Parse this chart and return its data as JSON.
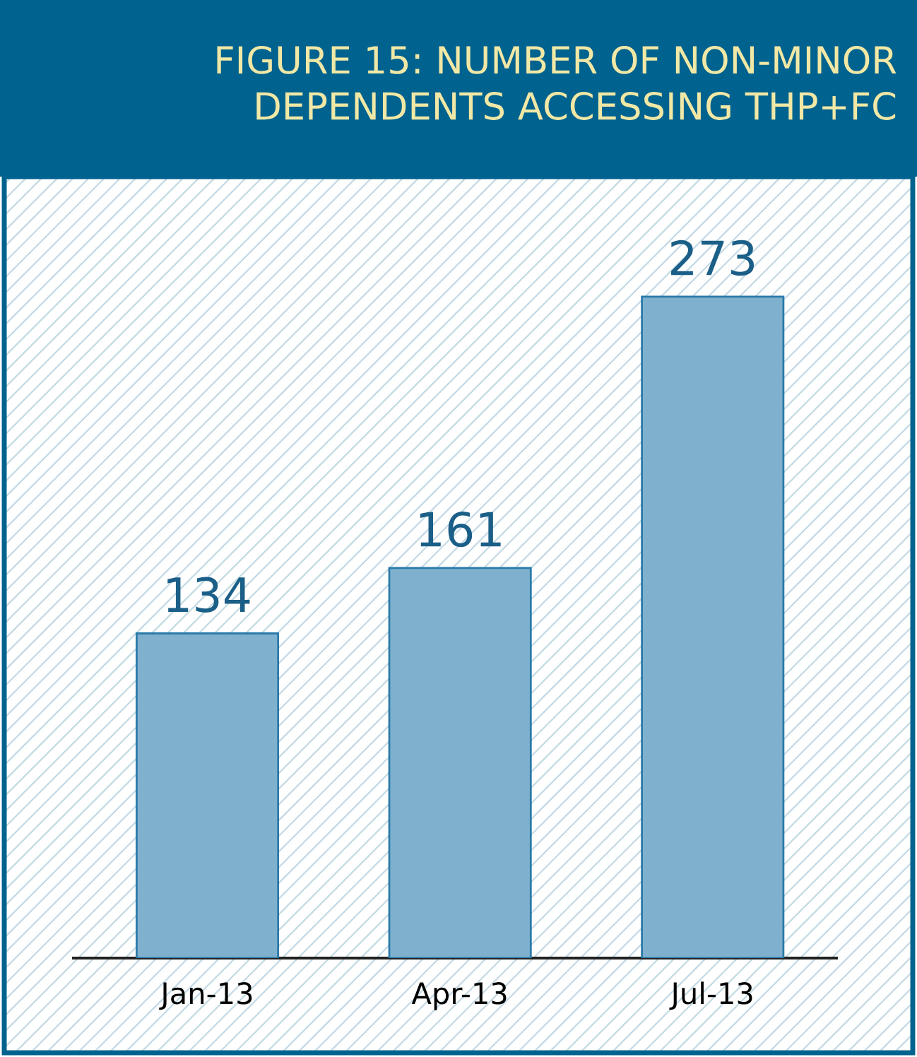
{
  "chart_data": {
    "type": "bar",
    "title": "FIGURE 15: NUMBER OF NON-MINOR\nDEPENDENTS ACCESSING THP+FC",
    "categories": [
      "Jan-13",
      "Apr-13",
      "Jul-13"
    ],
    "values": [
      134,
      161,
      273
    ],
    "color": "#7fb1cf",
    "data_labels": true,
    "tick_labels": "x",
    "grid": false,
    "legend": false
  }
}
